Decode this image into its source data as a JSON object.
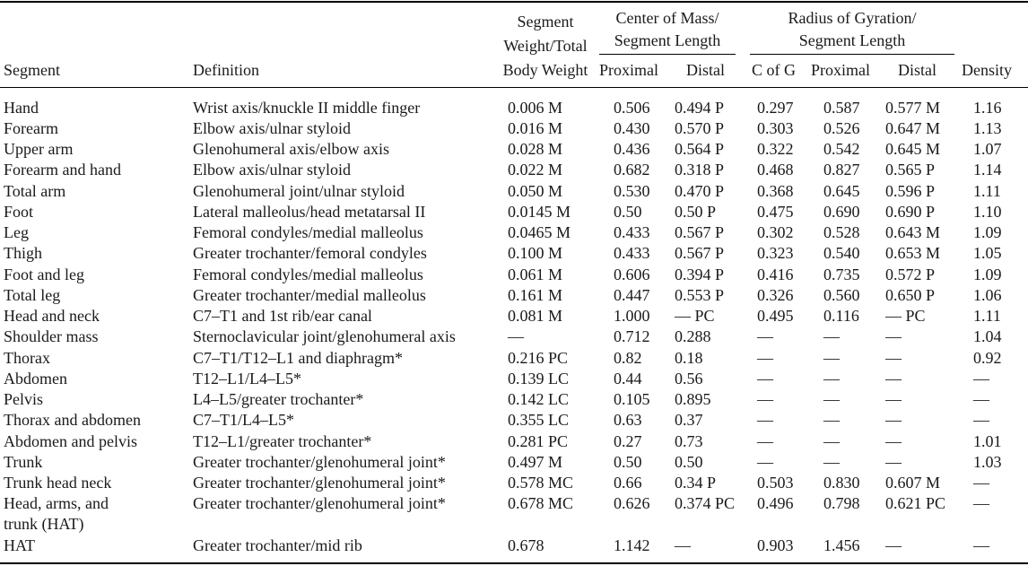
{
  "columns": {
    "segment": "Segment",
    "definition": "Definition",
    "weight": [
      "Segment",
      "Weight/Total",
      "Body Weight"
    ],
    "com_group": [
      "Center of Mass/",
      "Segment Length"
    ],
    "rog_group": [
      "Radius of Gyration/",
      "Segment Length"
    ],
    "proximal": "Proximal",
    "distal": "Distal",
    "c_of_g": "C of G",
    "rog_proximal": "Proximal",
    "rog_distal": "Distal",
    "density": "Density"
  },
  "rows": [
    {
      "segment": [
        "Hand"
      ],
      "definition": "Wrist axis/knuckle II middle finger",
      "weight": "0.006 M",
      "com_prox": "0.506",
      "com_dist": "0.494 P",
      "cofg": "0.297",
      "rog_prox": "0.587",
      "rog_dist": "0.577 M",
      "density": "1.16"
    },
    {
      "segment": [
        "Forearm"
      ],
      "definition": "Elbow axis/ulnar styloid",
      "weight": "0.016 M",
      "com_prox": "0.430",
      "com_dist": "0.570 P",
      "cofg": "0.303",
      "rog_prox": "0.526",
      "rog_dist": "0.647 M",
      "density": "1.13"
    },
    {
      "segment": [
        "Upper arm"
      ],
      "definition": "Glenohumeral axis/elbow axis",
      "weight": "0.028 M",
      "com_prox": "0.436",
      "com_dist": "0.564 P",
      "cofg": "0.322",
      "rog_prox": "0.542",
      "rog_dist": "0.645 M",
      "density": "1.07"
    },
    {
      "segment": [
        "Forearm and hand"
      ],
      "definition": "Elbow axis/ulnar styloid",
      "weight": "0.022 M",
      "com_prox": "0.682",
      "com_dist": "0.318 P",
      "cofg": "0.468",
      "rog_prox": "0.827",
      "rog_dist": "0.565 P",
      "density": "1.14"
    },
    {
      "segment": [
        "Total arm"
      ],
      "definition": "Glenohumeral joint/ulnar styloid",
      "weight": "0.050 M",
      "com_prox": "0.530",
      "com_dist": "0.470 P",
      "cofg": "0.368",
      "rog_prox": "0.645",
      "rog_dist": "0.596 P",
      "density": "1.11"
    },
    {
      "segment": [
        "Foot"
      ],
      "definition": "Lateral malleolus/head metatarsal II",
      "weight": "0.0145 M",
      "com_prox": "0.50",
      "com_dist": "0.50 P",
      "cofg": "0.475",
      "rog_prox": "0.690",
      "rog_dist": "0.690 P",
      "density": "1.10"
    },
    {
      "segment": [
        "Leg"
      ],
      "definition": "Femoral condyles/medial malleolus",
      "weight": "0.0465 M",
      "com_prox": "0.433",
      "com_dist": "0.567 P",
      "cofg": "0.302",
      "rog_prox": "0.528",
      "rog_dist": "0.643 M",
      "density": "1.09"
    },
    {
      "segment": [
        "Thigh"
      ],
      "definition": "Greater trochanter/femoral condyles",
      "weight": "0.100 M",
      "com_prox": "0.433",
      "com_dist": "0.567 P",
      "cofg": "0.323",
      "rog_prox": "0.540",
      "rog_dist": "0.653 M",
      "density": "1.05"
    },
    {
      "segment": [
        "Foot and leg"
      ],
      "definition": "Femoral condyles/medial malleolus",
      "weight": "0.061 M",
      "com_prox": "0.606",
      "com_dist": "0.394 P",
      "cofg": "0.416",
      "rog_prox": "0.735",
      "rog_dist": "0.572 P",
      "density": "1.09"
    },
    {
      "segment": [
        "Total leg"
      ],
      "definition": "Greater trochanter/medial malleolus",
      "weight": "0.161 M",
      "com_prox": "0.447",
      "com_dist": "0.553 P",
      "cofg": "0.326",
      "rog_prox": "0.560",
      "rog_dist": "0.650 P",
      "density": "1.06"
    },
    {
      "segment": [
        "Head and neck"
      ],
      "definition": "C7–T1 and 1st rib/ear canal",
      "weight": "0.081 M",
      "com_prox": "1.000",
      "com_dist": "— PC",
      "cofg": "0.495",
      "rog_prox": "0.116",
      "rog_dist": "— PC",
      "density": "1.11"
    },
    {
      "segment": [
        "Shoulder mass"
      ],
      "definition": "Sternoclavicular joint/glenohumeral axis",
      "weight": "—",
      "com_prox": "0.712",
      "com_dist": "0.288",
      "cofg": "—",
      "rog_prox": "—",
      "rog_dist": "—",
      "density": "1.04"
    },
    {
      "segment": [
        "Thorax"
      ],
      "definition": "C7–T1/T12–L1 and diaphragm*",
      "weight": "0.216 PC",
      "com_prox": "0.82",
      "com_dist": "0.18",
      "cofg": "—",
      "rog_prox": "—",
      "rog_dist": "—",
      "density": "0.92"
    },
    {
      "segment": [
        "Abdomen"
      ],
      "definition": "T12–L1/L4–L5*",
      "weight": "0.139 LC",
      "com_prox": "0.44",
      "com_dist": "0.56",
      "cofg": "—",
      "rog_prox": "—",
      "rog_dist": "—",
      "density": "—"
    },
    {
      "segment": [
        "Pelvis"
      ],
      "definition": "L4–L5/greater trochanter*",
      "weight": "0.142 LC",
      "com_prox": "0.105",
      "com_dist": "0.895",
      "cofg": "—",
      "rog_prox": "—",
      "rog_dist": "—",
      "density": "—"
    },
    {
      "segment": [
        "Thorax and abdomen"
      ],
      "definition": "C7–T1/L4–L5*",
      "weight": "0.355 LC",
      "com_prox": "0.63",
      "com_dist": "0.37",
      "cofg": "—",
      "rog_prox": "—",
      "rog_dist": "—",
      "density": "—"
    },
    {
      "segment": [
        "Abdomen and pelvis"
      ],
      "definition": "T12–L1/greater trochanter*",
      "weight": "0.281 PC",
      "com_prox": "0.27",
      "com_dist": "0.73",
      "cofg": "—",
      "rog_prox": "—",
      "rog_dist": "—",
      "density": "1.01"
    },
    {
      "segment": [
        "Trunk"
      ],
      "definition": "Greater trochanter/glenohumeral joint*",
      "weight": "0.497 M",
      "com_prox": "0.50",
      "com_dist": "0.50",
      "cofg": "—",
      "rog_prox": "—",
      "rog_dist": "—",
      "density": "1.03"
    },
    {
      "segment": [
        "Trunk head neck"
      ],
      "definition": "Greater trochanter/glenohumeral joint*",
      "weight": "0.578 MC",
      "com_prox": "0.66",
      "com_dist": "0.34 P",
      "cofg": "0.503",
      "rog_prox": "0.830",
      "rog_dist": "0.607 M",
      "density": "—"
    },
    {
      "segment": [
        "Head, arms, and",
        "trunk (HAT)"
      ],
      "definition": "Greater trochanter/glenohumeral joint*",
      "weight": "0.678 MC",
      "com_prox": "0.626",
      "com_dist": "0.374 PC",
      "cofg": "0.496",
      "rog_prox": "0.798",
      "rog_dist": "0.621 PC",
      "density": "—"
    },
    {
      "segment": [
        "HAT"
      ],
      "definition": "Greater trochanter/mid rib",
      "weight": "0.678",
      "com_prox": "1.142",
      "com_dist": "—",
      "cofg": "0.903",
      "rog_prox": "1.456",
      "rog_dist": "—",
      "density": "—"
    }
  ]
}
